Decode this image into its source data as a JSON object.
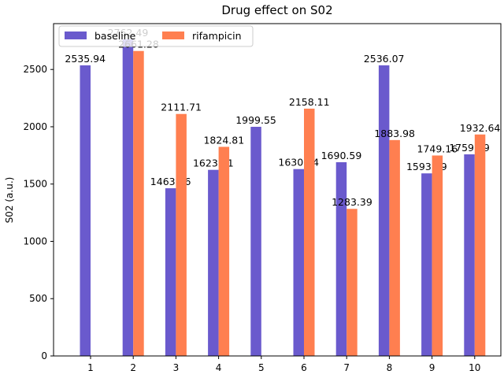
{
  "chart_data": {
    "type": "bar",
    "title": "Drug effect on S02",
    "xlabel": "",
    "ylabel": "S02 (a.u.)",
    "categories": [
      "1",
      "2",
      "3",
      "4",
      "5",
      "6",
      "7",
      "8",
      "9",
      "10"
    ],
    "series": [
      {
        "name": "baseline",
        "color": "#6a5acd",
        "values": [
          2535.94,
          2762.49,
          1463.46,
          1623.91,
          1999.55,
          1630.64,
          1690.59,
          2536.07,
          1593.19,
          1759.29
        ],
        "labels": [
          "2535.94",
          "2762.49",
          "1463.46",
          "1623.91",
          "1999.55",
          "1630.64",
          "1690.59",
          "2536.07",
          "1593.19",
          "1759.29"
        ]
      },
      {
        "name": "rifampicin",
        "color": "#ff7f50",
        "values": [
          null,
          2661.28,
          2111.71,
          1824.81,
          null,
          2158.11,
          1283.39,
          1883.98,
          1749.16,
          1932.64
        ],
        "labels": [
          null,
          "2661.28",
          "2111.71",
          "1824.81",
          null,
          "2158.11",
          "1283.39",
          "1883.98",
          "1749.16",
          "1932.64"
        ]
      }
    ],
    "ylim": [
      0,
      2900
    ],
    "yticks": [
      0,
      500,
      1000,
      1500,
      2000,
      2500
    ],
    "ytick_labels": [
      "0",
      "500",
      "1000",
      "1500",
      "2000",
      "2500"
    ],
    "grid": false,
    "legend": {
      "placement": "top-left",
      "ncol": 2
    }
  }
}
